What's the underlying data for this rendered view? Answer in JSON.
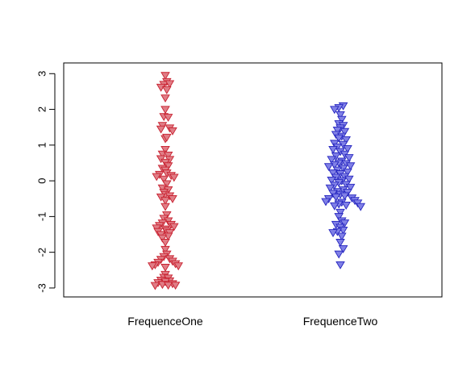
{
  "chart_data": {
    "type": "scatter",
    "title": "",
    "xlabel": "",
    "ylabel": "",
    "ylim": [
      -3.25,
      3.3
    ],
    "yticks": [
      -3,
      -2,
      -1,
      0,
      1,
      2,
      3
    ],
    "ytick_labels": [
      "-3",
      "-2",
      "-1",
      "0",
      "1",
      "2",
      "3"
    ],
    "categories": [
      "FrequenceOne",
      "FrequenceTwo"
    ],
    "marker": "triangle-down",
    "series": [
      {
        "category": "FrequenceOne",
        "fill": "#e07d86",
        "stroke": "#c8202f",
        "points": [
          [
            0.0,
            2.95
          ],
          [
            0.01,
            2.78
          ],
          [
            -0.01,
            2.7
          ],
          [
            0.03,
            2.72
          ],
          [
            -0.03,
            2.62
          ],
          [
            0.01,
            2.55
          ],
          [
            0.0,
            2.32
          ],
          [
            0.0,
            2.0
          ],
          [
            -0.01,
            1.8
          ],
          [
            0.02,
            1.78
          ],
          [
            -0.02,
            1.55
          ],
          [
            0.03,
            1.48
          ],
          [
            -0.03,
            1.45
          ],
          [
            0.05,
            1.4
          ],
          [
            0.0,
            1.18
          ],
          [
            0.01,
            1.22
          ],
          [
            0.0,
            0.88
          ],
          [
            -0.02,
            0.75
          ],
          [
            0.02,
            0.72
          ],
          [
            -0.03,
            0.62
          ],
          [
            0.03,
            0.6
          ],
          [
            0.0,
            0.52
          ],
          [
            0.02,
            0.42
          ],
          [
            -0.02,
            0.35
          ],
          [
            0.0,
            0.3
          ],
          [
            0.01,
            0.22
          ],
          [
            -0.04,
            0.18
          ],
          [
            0.04,
            0.15
          ],
          [
            -0.06,
            0.12
          ],
          [
            0.06,
            0.1
          ],
          [
            -0.01,
            0.05
          ],
          [
            0.01,
            -0.08
          ],
          [
            -0.02,
            -0.2
          ],
          [
            0.02,
            -0.25
          ],
          [
            -0.01,
            -0.32
          ],
          [
            0.0,
            -0.38
          ],
          [
            0.03,
            -0.42
          ],
          [
            -0.03,
            -0.45
          ],
          [
            0.05,
            -0.5
          ],
          [
            0.0,
            -0.55
          ],
          [
            0.0,
            -0.72
          ],
          [
            0.01,
            -0.95
          ],
          [
            -0.01,
            -1.05
          ],
          [
            0.02,
            -1.12
          ],
          [
            -0.02,
            -1.18
          ],
          [
            0.04,
            -1.22
          ],
          [
            -0.04,
            -1.25
          ],
          [
            0.06,
            -1.28
          ],
          [
            -0.06,
            -1.32
          ],
          [
            0.0,
            -1.35
          ],
          [
            0.01,
            -1.4
          ],
          [
            -0.05,
            -1.42
          ],
          [
            0.03,
            -1.45
          ],
          [
            -0.03,
            -1.5
          ],
          [
            0.02,
            -1.55
          ],
          [
            -0.02,
            -1.6
          ],
          [
            0.0,
            -1.72
          ],
          [
            0.0,
            -1.92
          ],
          [
            0.01,
            -2.05
          ],
          [
            -0.01,
            -2.12
          ],
          [
            0.03,
            -2.18
          ],
          [
            -0.03,
            -2.2
          ],
          [
            0.05,
            -2.25
          ],
          [
            -0.05,
            -2.28
          ],
          [
            0.07,
            -2.32
          ],
          [
            -0.07,
            -2.35
          ],
          [
            0.09,
            -2.38
          ],
          [
            -0.09,
            -2.38
          ],
          [
            0.0,
            -2.42
          ],
          [
            0.0,
            -2.62
          ],
          [
            -0.01,
            -2.7
          ],
          [
            0.02,
            -2.72
          ],
          [
            -0.03,
            -2.78
          ],
          [
            0.03,
            -2.8
          ],
          [
            0.0,
            -2.82
          ],
          [
            -0.05,
            -2.85
          ],
          [
            0.05,
            -2.88
          ],
          [
            -0.02,
            -2.9
          ],
          [
            0.02,
            -2.92
          ],
          [
            -0.07,
            -2.93
          ],
          [
            0.07,
            -2.92
          ]
        ]
      },
      {
        "category": "FrequenceTwo",
        "fill": "#8080e6",
        "stroke": "#2626c0",
        "points": [
          [
            0.02,
            2.1
          ],
          [
            -0.01,
            2.05
          ],
          [
            -0.04,
            2.0
          ],
          [
            0.0,
            1.85
          ],
          [
            0.01,
            1.72
          ],
          [
            -0.01,
            1.6
          ],
          [
            0.02,
            1.55
          ],
          [
            0.0,
            1.48
          ],
          [
            -0.02,
            1.42
          ],
          [
            0.03,
            1.38
          ],
          [
            -0.03,
            1.3
          ],
          [
            0.01,
            1.25
          ],
          [
            -0.01,
            1.2
          ],
          [
            0.04,
            1.15
          ],
          [
            -0.04,
            1.05
          ],
          [
            0.02,
            1.02
          ],
          [
            -0.02,
            0.95
          ],
          [
            0.05,
            0.9
          ],
          [
            -0.05,
            0.88
          ],
          [
            0.0,
            0.82
          ],
          [
            0.03,
            0.75
          ],
          [
            -0.03,
            0.7
          ],
          [
            0.06,
            0.65
          ],
          [
            -0.06,
            0.6
          ],
          [
            0.01,
            0.55
          ],
          [
            -0.01,
            0.5
          ],
          [
            0.04,
            0.48
          ],
          [
            -0.04,
            0.45
          ],
          [
            0.07,
            0.42
          ],
          [
            -0.08,
            0.4
          ],
          [
            0.02,
            0.35
          ],
          [
            -0.02,
            0.3
          ],
          [
            0.05,
            0.25
          ],
          [
            -0.05,
            0.22
          ],
          [
            0.0,
            0.2
          ],
          [
            0.03,
            0.12
          ],
          [
            -0.03,
            0.1
          ],
          [
            0.06,
            0.05
          ],
          [
            -0.06,
            0.02
          ],
          [
            0.01,
            0.0
          ],
          [
            -0.01,
            -0.05
          ],
          [
            0.04,
            -0.1
          ],
          [
            -0.04,
            -0.12
          ],
          [
            0.07,
            -0.18
          ],
          [
            -0.07,
            -0.2
          ],
          [
            0.02,
            -0.25
          ],
          [
            -0.02,
            -0.3
          ],
          [
            0.05,
            -0.32
          ],
          [
            -0.05,
            -0.35
          ],
          [
            0.0,
            -0.38
          ],
          [
            0.03,
            -0.42
          ],
          [
            -0.03,
            -0.45
          ],
          [
            0.08,
            -0.48
          ],
          [
            -0.08,
            -0.5
          ],
          [
            0.1,
            -0.55
          ],
          [
            -0.1,
            -0.58
          ],
          [
            0.12,
            -0.62
          ],
          [
            0.01,
            -0.6
          ],
          [
            -0.01,
            -0.65
          ],
          [
            0.04,
            -0.68
          ],
          [
            -0.04,
            -0.7
          ],
          [
            0.14,
            -0.72
          ],
          [
            0.0,
            -0.88
          ],
          [
            -0.01,
            -1.0
          ],
          [
            0.01,
            -1.12
          ],
          [
            0.03,
            -1.18
          ],
          [
            -0.03,
            -1.22
          ],
          [
            0.0,
            -1.3
          ],
          [
            0.02,
            -1.38
          ],
          [
            -0.02,
            -1.42
          ],
          [
            -0.05,
            -1.45
          ],
          [
            0.01,
            -1.55
          ],
          [
            0.0,
            -1.72
          ],
          [
            0.02,
            -1.9
          ],
          [
            -0.01,
            -2.05
          ],
          [
            0.0,
            -2.35
          ]
        ]
      }
    ]
  }
}
